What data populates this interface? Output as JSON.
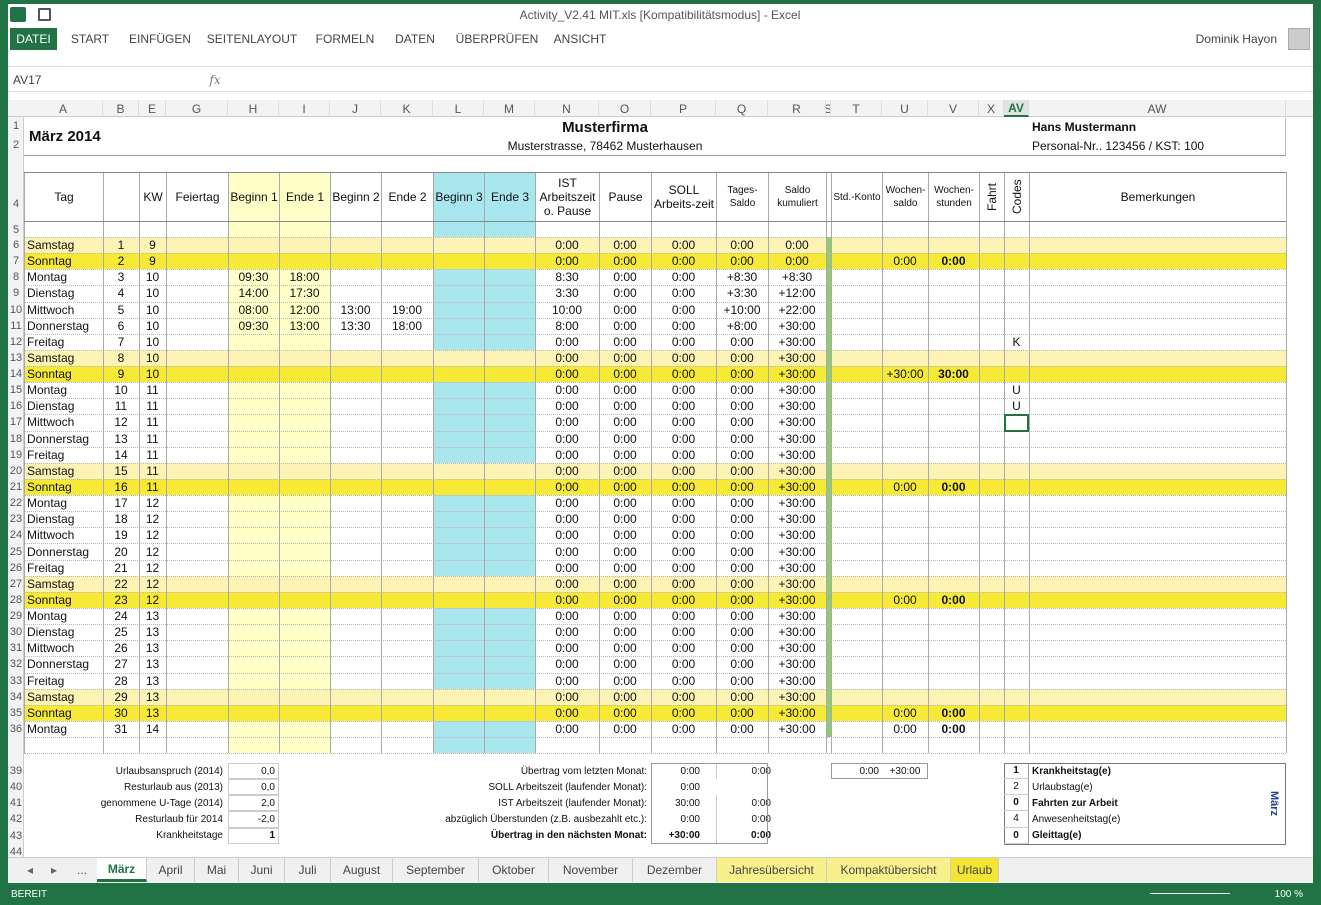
{
  "window": {
    "title": "Activity_V2.41 MIT.xls  [Kompatibilitätsmodus] - Excel",
    "user": "Dominik Hayon",
    "ribbon_tabs": [
      "DATEI",
      "START",
      "EINFÜGEN",
      "SEITENLAYOUT",
      "FORMELN",
      "DATEN",
      "ÜBERPRÜFEN",
      "ANSICHT"
    ],
    "name_box": "AV17",
    "fx": "fx",
    "status": "BEREIT",
    "zoom": "100 %",
    "more_tabs": "..."
  },
  "columns": [
    "A",
    "B",
    "E",
    "G",
    "H",
    "I",
    "J",
    "K",
    "L",
    "M",
    "N",
    "O",
    "P",
    "Q",
    "R",
    "S",
    "T",
    "U",
    "V",
    "X",
    "AV",
    "AW"
  ],
  "sheet": {
    "month": "März 2014",
    "company": "Musterfirma",
    "address": "Musterstrasse, 78462 Musterhausen",
    "employee": "Hans Mustermann",
    "personnel": "Personal-Nr.. 123456 / KST: 100"
  },
  "headers": [
    "Tag",
    "KW",
    "Feiertag",
    "Beginn 1",
    "Ende 1",
    "Beginn 2",
    "Ende 2",
    "Beginn 3",
    "Ende 3",
    "IST Arbeitszeit o. Pause",
    "Pause",
    "SOLL Arbeits-zeit",
    "Tages-Saldo",
    "Saldo kumuliert",
    "Std.-Konto",
    "Wochen-saldo",
    "Wochen-stunden",
    "Fahrt",
    "Codes",
    "Bemerkungen"
  ],
  "row_headers": [
    1,
    2,
    4,
    5,
    39,
    40,
    41,
    42,
    43,
    44
  ],
  "rows": [
    {
      "color": "#fcf3b4",
      "cells": [
        6,
        "Samstag",
        1,
        9,
        null,
        null,
        null,
        null,
        "0:00",
        "0:00",
        "0:00",
        "0:00",
        "0:00",
        null,
        null,
        null
      ]
    },
    {
      "color": "#f6ea36",
      "cells": [
        7,
        "Sonntag",
        2,
        9,
        null,
        null,
        null,
        null,
        "0:00",
        "0:00",
        "0:00",
        "0:00",
        "0:00",
        "0:00",
        "0:00",
        null
      ]
    },
    {
      "color": null,
      "cells": [
        8,
        "Montag",
        3,
        10,
        "09:30",
        "18:00",
        null,
        null,
        "8:30",
        "0:00",
        "0:00",
        "+8:30",
        "+8:30",
        null,
        null,
        null
      ]
    },
    {
      "color": null,
      "cells": [
        9,
        "Dienstag",
        4,
        10,
        "14:00",
        "17:30",
        null,
        null,
        "3:30",
        "0:00",
        "0:00",
        "+3:30",
        "+12:00",
        null,
        null,
        null
      ]
    },
    {
      "color": null,
      "cells": [
        10,
        "Mittwoch",
        5,
        10,
        "08:00",
        "12:00",
        "13:00",
        "19:00",
        "10:00",
        "0:00",
        "0:00",
        "+10:00",
        "+22:00",
        null,
        null,
        null
      ]
    },
    {
      "color": null,
      "cells": [
        11,
        "Donnerstag",
        6,
        10,
        "09:30",
        "13:00",
        "13:30",
        "18:00",
        "8:00",
        "0:00",
        "0:00",
        "+8:00",
        "+30:00",
        null,
        null,
        null
      ]
    },
    {
      "color": null,
      "cells": [
        12,
        "Freitag",
        7,
        10,
        null,
        null,
        null,
        null,
        "0:00",
        "0:00",
        "0:00",
        "0:00",
        "+30:00",
        null,
        null,
        "K"
      ]
    },
    {
      "color": "#fcf3b4",
      "cells": [
        13,
        "Samstag",
        8,
        10,
        null,
        null,
        null,
        null,
        "0:00",
        "0:00",
        "0:00",
        "0:00",
        "+30:00",
        null,
        null,
        null
      ]
    },
    {
      "color": "#f6ea36",
      "cells": [
        14,
        "Sonntag",
        9,
        10,
        null,
        null,
        null,
        null,
        "0:00",
        "0:00",
        "0:00",
        "0:00",
        "+30:00",
        "+30:00",
        "30:00",
        null
      ]
    },
    {
      "color": null,
      "cells": [
        15,
        "Montag",
        10,
        11,
        null,
        null,
        null,
        null,
        "0:00",
        "0:00",
        "0:00",
        "0:00",
        "+30:00",
        null,
        null,
        "U"
      ]
    },
    {
      "color": null,
      "cells": [
        16,
        "Dienstag",
        11,
        11,
        null,
        null,
        null,
        null,
        "0:00",
        "0:00",
        "0:00",
        "0:00",
        "+30:00",
        null,
        null,
        "U"
      ]
    },
    {
      "color": null,
      "cells": [
        17,
        "Mittwoch",
        12,
        11,
        null,
        null,
        null,
        null,
        "0:00",
        "0:00",
        "0:00",
        "0:00",
        "+30:00",
        null,
        null,
        null
      ]
    },
    {
      "color": null,
      "cells": [
        18,
        "Donnerstag",
        13,
        11,
        null,
        null,
        null,
        null,
        "0:00",
        "0:00",
        "0:00",
        "0:00",
        "+30:00",
        null,
        null,
        null
      ]
    },
    {
      "color": null,
      "cells": [
        19,
        "Freitag",
        14,
        11,
        null,
        null,
        null,
        null,
        "0:00",
        "0:00",
        "0:00",
        "0:00",
        "+30:00",
        null,
        null,
        null
      ]
    },
    {
      "color": "#fcf3b4",
      "cells": [
        20,
        "Samstag",
        15,
        11,
        null,
        null,
        null,
        null,
        "0:00",
        "0:00",
        "0:00",
        "0:00",
        "+30:00",
        null,
        null,
        null
      ]
    },
    {
      "color": "#f6ea36",
      "cells": [
        21,
        "Sonntag",
        16,
        11,
        null,
        null,
        null,
        null,
        "0:00",
        "0:00",
        "0:00",
        "0:00",
        "+30:00",
        "0:00",
        "0:00",
        null
      ]
    },
    {
      "color": null,
      "cells": [
        22,
        "Montag",
        17,
        12,
        null,
        null,
        null,
        null,
        "0:00",
        "0:00",
        "0:00",
        "0:00",
        "+30:00",
        null,
        null,
        null
      ]
    },
    {
      "color": null,
      "cells": [
        23,
        "Dienstag",
        18,
        12,
        null,
        null,
        null,
        null,
        "0:00",
        "0:00",
        "0:00",
        "0:00",
        "+30:00",
        null,
        null,
        null
      ]
    },
    {
      "color": null,
      "cells": [
        24,
        "Mittwoch",
        19,
        12,
        null,
        null,
        null,
        null,
        "0:00",
        "0:00",
        "0:00",
        "0:00",
        "+30:00",
        null,
        null,
        null
      ]
    },
    {
      "color": null,
      "cells": [
        25,
        "Donnerstag",
        20,
        12,
        null,
        null,
        null,
        null,
        "0:00",
        "0:00",
        "0:00",
        "0:00",
        "+30:00",
        null,
        null,
        null
      ]
    },
    {
      "color": null,
      "cells": [
        26,
        "Freitag",
        21,
        12,
        null,
        null,
        null,
        null,
        "0:00",
        "0:00",
        "0:00",
        "0:00",
        "+30:00",
        null,
        null,
        null
      ]
    },
    {
      "color": "#fcf3b4",
      "cells": [
        27,
        "Samstag",
        22,
        12,
        null,
        null,
        null,
        null,
        "0:00",
        "0:00",
        "0:00",
        "0:00",
        "+30:00",
        null,
        null,
        null
      ]
    },
    {
      "color": "#f6ea36",
      "cells": [
        28,
        "Sonntag",
        23,
        12,
        null,
        null,
        null,
        null,
        "0:00",
        "0:00",
        "0:00",
        "0:00",
        "+30:00",
        "0:00",
        "0:00",
        null
      ]
    },
    {
      "color": null,
      "cells": [
        29,
        "Montag",
        24,
        13,
        null,
        null,
        null,
        null,
        "0:00",
        "0:00",
        "0:00",
        "0:00",
        "+30:00",
        null,
        null,
        null
      ]
    },
    {
      "color": null,
      "cells": [
        30,
        "Dienstag",
        25,
        13,
        null,
        null,
        null,
        null,
        "0:00",
        "0:00",
        "0:00",
        "0:00",
        "+30:00",
        null,
        null,
        null
      ]
    },
    {
      "color": null,
      "cells": [
        31,
        "Mittwoch",
        26,
        13,
        null,
        null,
        null,
        null,
        "0:00",
        "0:00",
        "0:00",
        "0:00",
        "+30:00",
        null,
        null,
        null
      ]
    },
    {
      "color": null,
      "cells": [
        32,
        "Donnerstag",
        27,
        13,
        null,
        null,
        null,
        null,
        "0:00",
        "0:00",
        "0:00",
        "0:00",
        "+30:00",
        null,
        null,
        null
      ]
    },
    {
      "color": null,
      "cells": [
        33,
        "Freitag",
        28,
        13,
        null,
        null,
        null,
        null,
        "0:00",
        "0:00",
        "0:00",
        "0:00",
        "+30:00",
        null,
        null,
        null
      ]
    },
    {
      "color": "#fcf3b4",
      "cells": [
        34,
        "Samstag",
        29,
        13,
        null,
        null,
        null,
        null,
        "0:00",
        "0:00",
        "0:00",
        "0:00",
        "+30:00",
        null,
        null,
        null
      ]
    },
    {
      "color": "#f6ea36",
      "cells": [
        35,
        "Sonntag",
        30,
        13,
        null,
        null,
        null,
        null,
        "0:00",
        "0:00",
        "0:00",
        "0:00",
        "+30:00",
        "0:00",
        "0:00",
        null
      ]
    },
    {
      "color": null,
      "cells": [
        36,
        "Montag",
        31,
        14,
        null,
        null,
        null,
        null,
        "0:00",
        "0:00",
        "0:00",
        "0:00",
        "+30:00",
        "0:00",
        "0:00",
        null
      ]
    }
  ],
  "summary_left": [
    [
      "Urlaubsanspruch (2014)",
      "0,0"
    ],
    [
      "Resturlaub aus (2013)",
      "0,0"
    ],
    [
      "genommene U-Tage (2014)",
      "2,0"
    ],
    [
      "Resturlaub für 2014",
      "-2,0"
    ],
    [
      "Krankheitstage",
      "1"
    ]
  ],
  "summary_mid": [
    [
      "Übertrag vom letzten Monat:",
      "0:00",
      "0:00"
    ],
    [
      "SOLL Arbeitszeit (laufender Monat):",
      "0:00",
      null
    ],
    [
      "IST Arbeitszeit (laufender Monat):",
      "30:00",
      "0:00"
    ],
    [
      "abzüglich Überstunden (z.B. ausbezahlt etc.):",
      "0:00",
      "0:00"
    ],
    [
      "Übertrag in den nächsten Monat:",
      "+30:00",
      "0:00"
    ]
  ],
  "summary_right": [
    "0:00",
    "+30:00"
  ],
  "legend": {
    "title": "März",
    "items": [
      [
        "1",
        "Krankheitstag(e)"
      ],
      [
        "2",
        "Urlaubstag(e)"
      ],
      [
        "0",
        "Fahrten zur Arbeit"
      ],
      [
        "4",
        "Anwesenheitstag(e)"
      ],
      [
        "0",
        "Gleittag(e)"
      ]
    ]
  },
  "sheet_tabs": [
    {
      "name": "März",
      "color": null
    },
    {
      "name": "April",
      "color": null
    },
    {
      "name": "Mai",
      "color": null
    },
    {
      "name": "Juni",
      "color": null
    },
    {
      "name": "Juli",
      "color": null
    },
    {
      "name": "August",
      "color": null
    },
    {
      "name": "September",
      "color": null
    },
    {
      "name": "Oktober",
      "color": null
    },
    {
      "name": "November",
      "color": null
    },
    {
      "name": "Dezember",
      "color": null
    },
    {
      "name": "Jahresübersicht",
      "color": "#f8f08a"
    },
    {
      "name": "Kompaktübersicht",
      "color": "#f8f08a"
    },
    {
      "name": "Urlaub",
      "color": "#f2e534"
    }
  ]
}
